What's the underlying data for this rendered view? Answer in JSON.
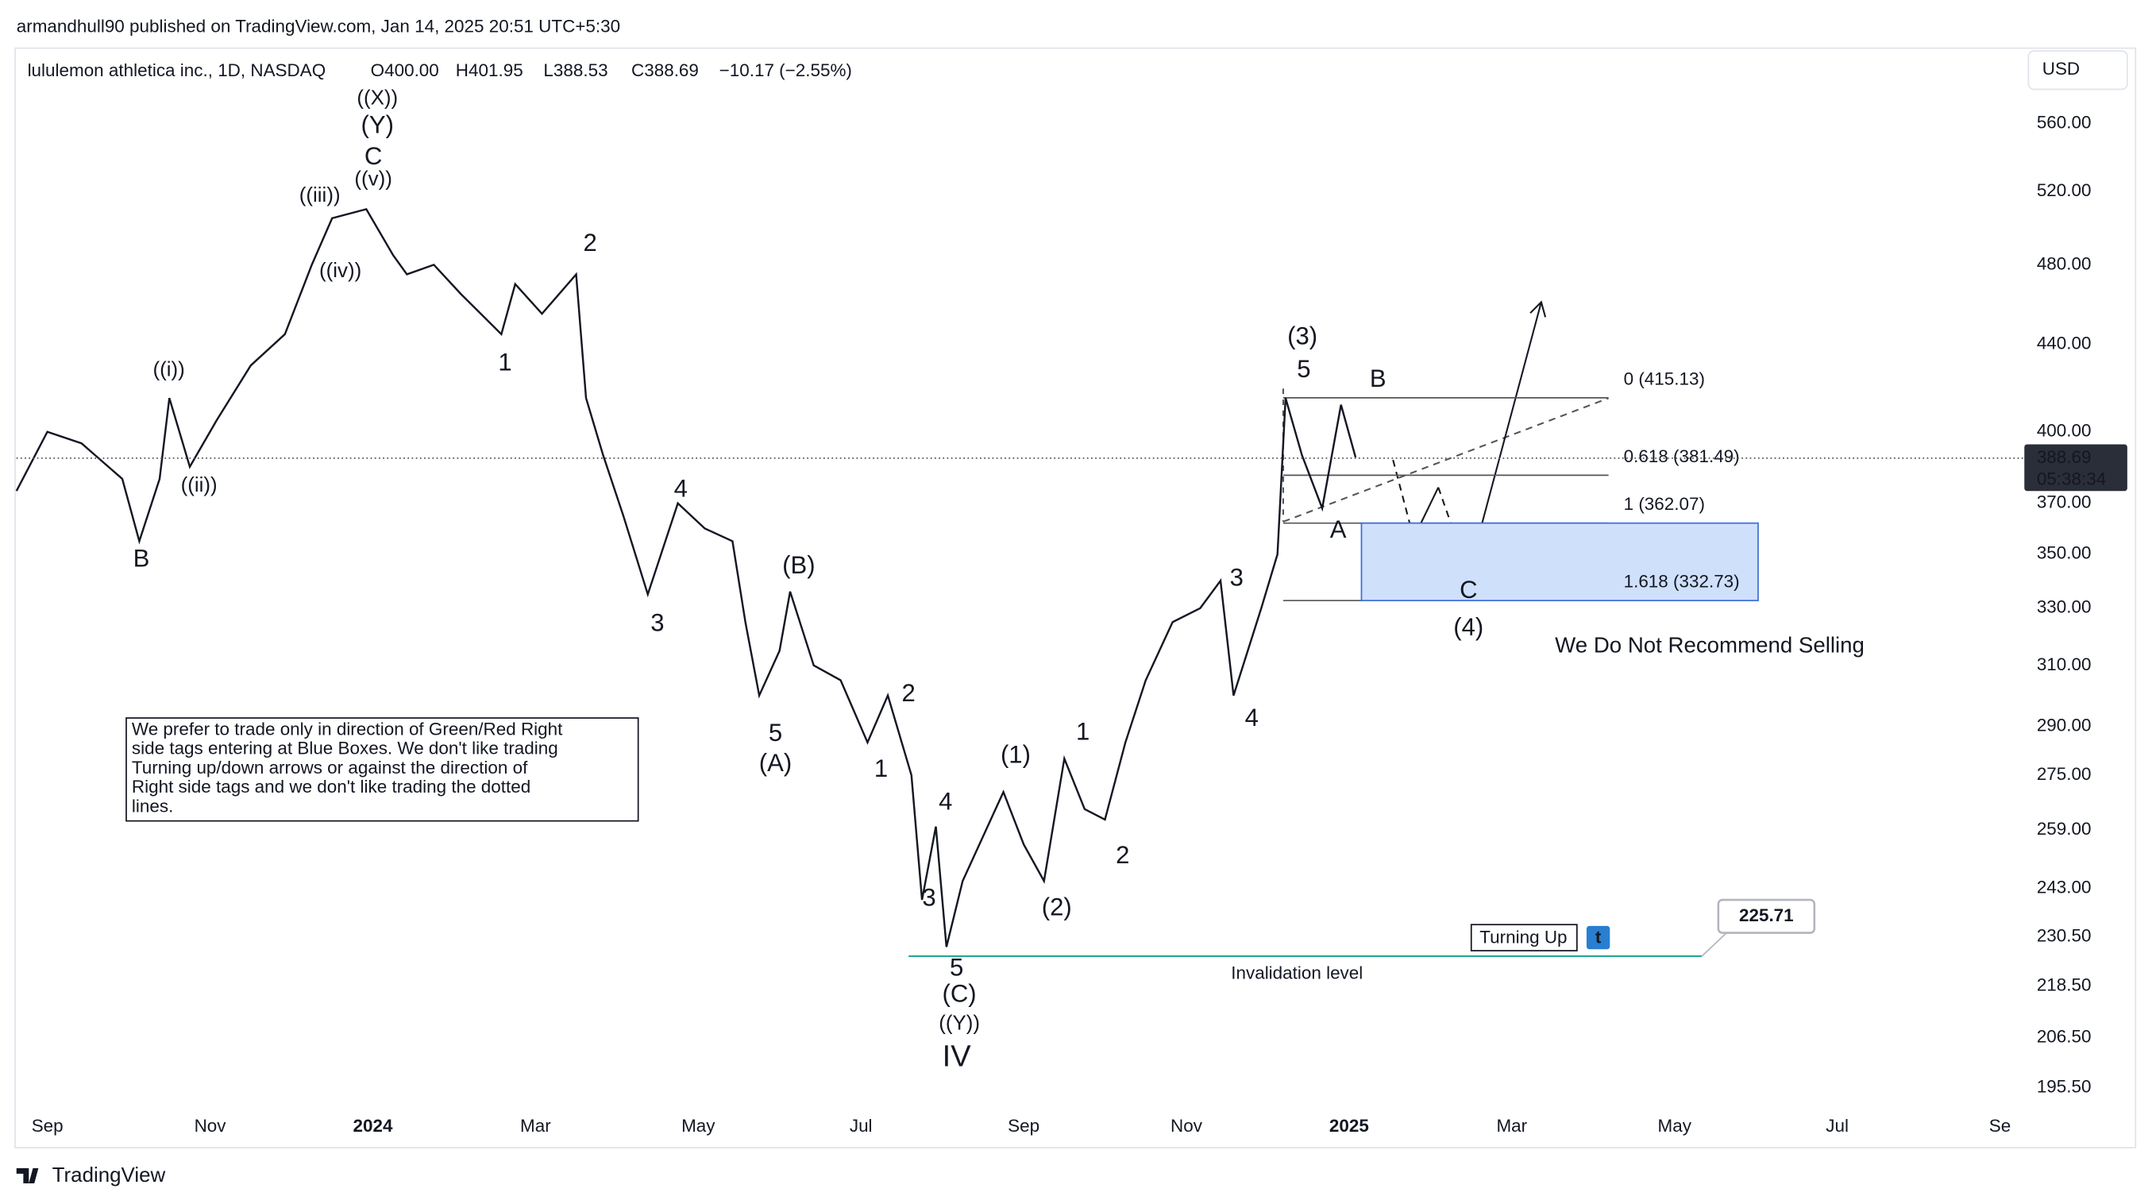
{
  "header": {
    "publisher": "armandhull90 published on TradingView.com, Jan 14, 2025 20:51 UTC+5:30",
    "footer": "TradingView"
  },
  "chart_data": {
    "type": "line",
    "symbol": "lululemon athletica inc., 1D, NASDAQ",
    "ohlc_legend": [
      "O400.00",
      "H401.95",
      "L388.53",
      "C388.69",
      "−10.17 (−2.55%)"
    ],
    "currency": "USD",
    "log_scale": true,
    "grid": false,
    "color": "#131722",
    "ylim": [
      191,
      608
    ],
    "yticks": [
      {
        "value": 560,
        "label": "560.00"
      },
      {
        "value": 520,
        "label": "520.00"
      },
      {
        "value": 480,
        "label": "480.00"
      },
      {
        "value": 440,
        "label": "440.00"
      },
      {
        "value": 400,
        "label": "400.00"
      },
      {
        "value": 370,
        "label": "370.00"
      },
      {
        "value": 350,
        "label": "350.00"
      },
      {
        "value": 330,
        "label": "330.00"
      },
      {
        "value": 310,
        "label": "310.00"
      },
      {
        "value": 290,
        "label": "290.00"
      },
      {
        "value": 275,
        "label": "275.00"
      },
      {
        "value": 259,
        "label": "259.00"
      },
      {
        "value": 243,
        "label": "243.00"
      },
      {
        "value": 230.5,
        "label": "230.50"
      },
      {
        "value": 218.5,
        "label": "218.50"
      },
      {
        "value": 206.5,
        "label": "206.50"
      },
      {
        "value": 195.5,
        "label": "195.50"
      }
    ],
    "xlim": [
      -0.38,
      24.3
    ],
    "xticks": [
      {
        "value": 0,
        "label": "Sep"
      },
      {
        "value": 2,
        "label": "Nov"
      },
      {
        "value": 4,
        "label": "2024"
      },
      {
        "value": 6,
        "label": "Mar"
      },
      {
        "value": 8,
        "label": "May"
      },
      {
        "value": 10,
        "label": "Jul"
      },
      {
        "value": 12,
        "label": "Sep"
      },
      {
        "value": 14,
        "label": "Nov"
      },
      {
        "value": 16,
        "label": "2025"
      },
      {
        "value": 18,
        "label": "Mar"
      },
      {
        "value": 20,
        "label": "May"
      },
      {
        "value": 22,
        "label": "Jul"
      },
      {
        "value": 24,
        "label": "Se"
      }
    ],
    "x": [
      -0.38,
      0,
      0.42,
      0.92,
      1.13,
      1.38,
      1.5,
      1.75,
      2.08,
      2.5,
      2.92,
      3.25,
      3.5,
      3.92,
      4.25,
      4.42,
      4.75,
      5.08,
      5.58,
      5.75,
      6.08,
      6.5,
      6.62,
      6.83,
      7.08,
      7.38,
      7.75,
      8.08,
      8.42,
      8.58,
      8.75,
      9.0,
      9.13,
      9.42,
      9.75,
      10.08,
      10.33,
      10.62,
      10.75,
      10.92,
      11.05,
      11.25,
      11.75,
      12.0,
      12.25,
      12.5,
      12.75,
      13.0,
      13.25,
      13.5,
      13.83,
      14.17,
      14.42,
      14.58,
      14.92,
      15.12,
      15.22,
      15.42,
      15.67,
      15.9,
      16.08
    ],
    "values": [
      375,
      400,
      395,
      380,
      355,
      380,
      415,
      385,
      405,
      430,
      445,
      480,
      505,
      510,
      485,
      475,
      480,
      465,
      445,
      470,
      455,
      475,
      415,
      390,
      365,
      335,
      370,
      360,
      355,
      325,
      300,
      315,
      336,
      310,
      305,
      285,
      300,
      275,
      240,
      260,
      228,
      245,
      270,
      255,
      245,
      280,
      265,
      262,
      285,
      305,
      325,
      330,
      340,
      300,
      330,
      350,
      415,
      390,
      368,
      412,
      389
    ],
    "current_price": {
      "value": 388.69,
      "label": "388.69"
    },
    "countdown": "05:38:34",
    "fib_levels": [
      {
        "value": 415.13,
        "label": "0 (415.13)"
      },
      {
        "value": 381.49,
        "label": "0.618 (381.49)"
      },
      {
        "value": 362.07,
        "label": "1 (362.07)"
      },
      {
        "value": 332.73,
        "label": "1.618 (332.73)"
      }
    ],
    "invalidation": {
      "value": 225.71,
      "label": "225.71"
    },
    "invalidation_text": "Invalidation level",
    "turning_up": "Turning Up",
    "turning_icon": "t",
    "warning": "We Do Not Recommend Selling",
    "note": [
      "We prefer to trade only in direction of Green/Red Right",
      "side tags entering at Blue Boxes. We don't like trading",
      "Turning up/down arrows or against the direction of",
      "Right side tags and we don't like trading the dotted",
      "lines."
    ],
    "wave_labels": [
      "((X))",
      "((v))",
      "((iii))",
      "((iv))",
      "((i))",
      "((ii))",
      "((Y))",
      "(Y)",
      "(B)",
      "(A)",
      "(1)",
      "(2)",
      "(C)",
      "(3)",
      "(4)",
      "C",
      "2",
      "1",
      "B",
      "4",
      "3",
      "5",
      "2",
      "1",
      "4",
      "3",
      "5",
      "IV",
      "1",
      "2",
      "3",
      "4",
      "5",
      "A",
      "B",
      "C"
    ]
  }
}
